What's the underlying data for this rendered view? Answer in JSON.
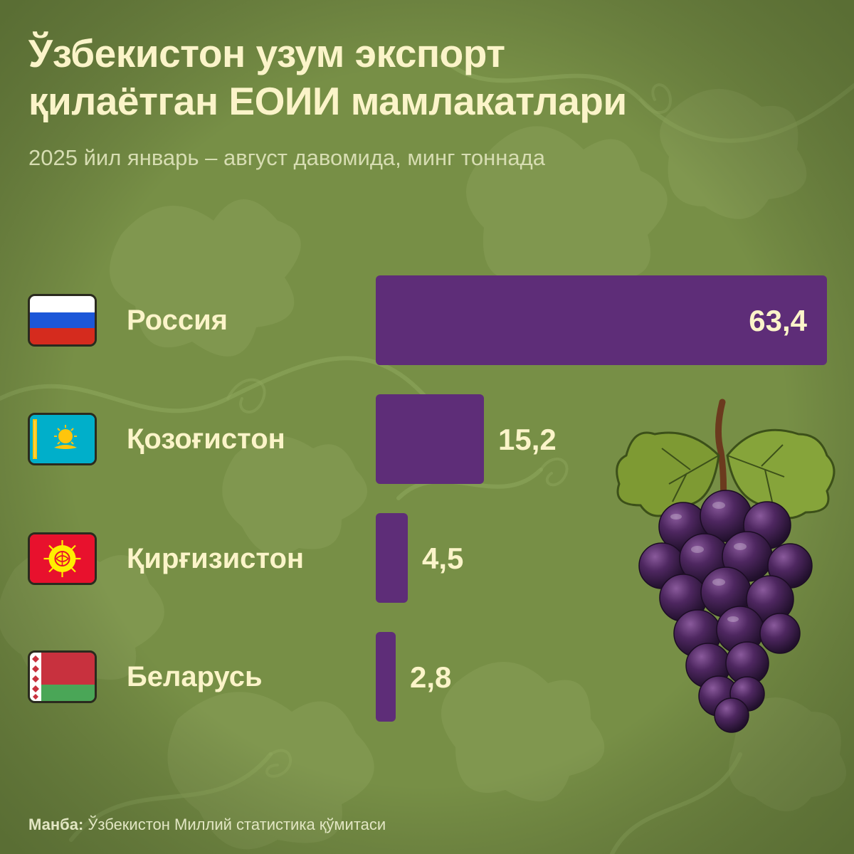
{
  "title_line1": "Ўзбекистон узум экспорт",
  "title_line2": "қилаётган ЕОИИ мамлакатлари",
  "subtitle": "2025 йил январь – август давомида, минг тоннада",
  "source_label": "Манба:",
  "source_text": "Ўзбекистон Миллий статистика қўмитаси",
  "colors": {
    "background": "#778f46",
    "bar": "#5e2d78",
    "text": "#fbf4c9"
  },
  "chart_data": {
    "type": "bar",
    "orientation": "horizontal",
    "title": "Ўзбекистон узум экспорт қилаётган ЕОИИ мамлакатлари",
    "subtitle": "2025 йил январь – август давомида, минг тоннада",
    "categories": [
      "Россия",
      "Қозоғистон",
      "Қирғизистон",
      "Беларусь"
    ],
    "values": [
      63.4,
      15.2,
      4.5,
      2.8
    ],
    "value_labels": [
      "63,4",
      "15,2",
      "4,5",
      "2,8"
    ],
    "flag_icons": [
      "russia-flag-icon",
      "kazakhstan-flag-icon",
      "kyrgyzstan-flag-icon",
      "belarus-flag-icon"
    ],
    "xlim": [
      0,
      63.4
    ],
    "grid": false,
    "legend": "none"
  }
}
